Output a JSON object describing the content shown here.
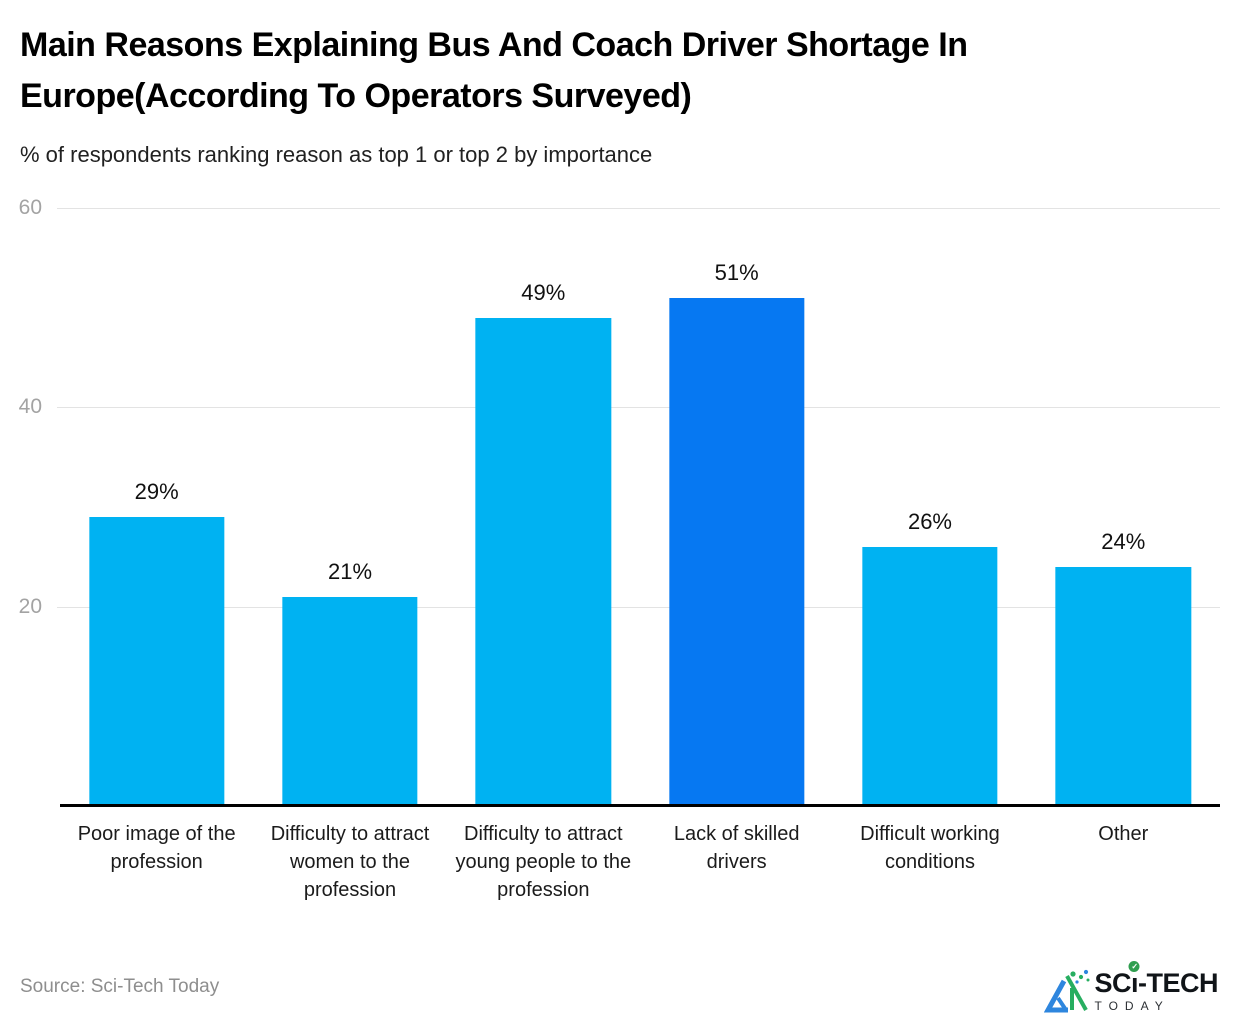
{
  "title": "Main Reasons Explaining Bus And Coach Driver Shortage In Europe(According To Operators Surveyed)",
  "subtitle": "% of respondents ranking reason as top 1 or top 2 by importance",
  "source": "Source: Sci-Tech Today",
  "logo": {
    "brand_prefix": "SC",
    "brand_i": "ı",
    "brand_check": "✓",
    "brand_suffix": "-TECH",
    "brand_bottom": "TODAY"
  },
  "chart_data": {
    "type": "bar",
    "categories": [
      "Poor image of the profession",
      "Difficulty to attract women to the profession",
      "Difficulty to attract young people to the profession",
      "Lack of skilled drivers",
      "Difficult working conditions",
      "Other"
    ],
    "values": [
      29,
      21,
      49,
      51,
      26,
      24
    ],
    "value_labels": [
      "29%",
      "21%",
      "49%",
      "51%",
      "26%",
      "24%"
    ],
    "title": "Main Reasons Explaining Bus And Coach Driver Shortage In Europe(According To Operators Surveyed)",
    "subtitle": "% of respondents ranking reason as top 1 or top 2 by importance",
    "xlabel": "",
    "ylabel": "",
    "ylim": [
      0,
      60
    ],
    "yticks": [
      20,
      40,
      60
    ],
    "grid": true,
    "legend": "none",
    "bar_color": "#00B2F2",
    "highlight_color": "#0678F2",
    "highlight_index": 3,
    "tick_color": "#a3a3a3",
    "gridline_color": "#e3e3e3"
  }
}
